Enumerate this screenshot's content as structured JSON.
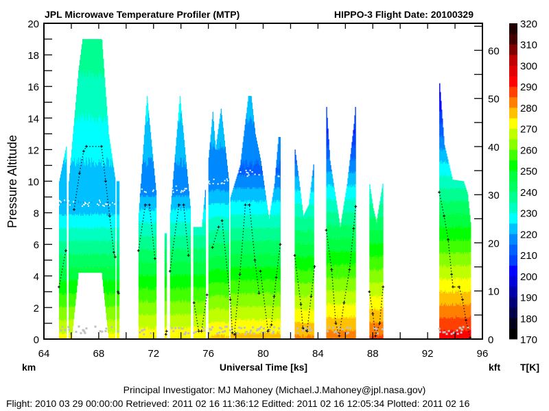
{
  "chart_data": {
    "type": "heatmap",
    "title_left": "JPL Microwave Temperature Profiler (MTP)",
    "title_right": "HIPPO-3  Flight Date: 20100329",
    "xlabel": "Universal Time [ks]",
    "ylabel": "Pressure Altitude",
    "left_unit": "km",
    "right_unit": "kft",
    "colorbar_unit": "T[K]",
    "xlim": [
      64,
      96
    ],
    "ylim": [
      0,
      20
    ],
    "right_ylim_kft": [
      0,
      65.6168
    ],
    "x_ticks": [
      "64",
      "68",
      "72",
      "76",
      "80",
      "84",
      "88",
      "92",
      "96"
    ],
    "y_ticks": [
      "0",
      "2",
      "4",
      "6",
      "8",
      "10",
      "12",
      "14",
      "16",
      "18",
      "20"
    ],
    "right_ticks": [
      "0",
      "10",
      "20",
      "30",
      "40",
      "50",
      "60"
    ],
    "colorbar": {
      "range": [
        170,
        320
      ],
      "step": 5,
      "ticks": [
        "170",
        "180",
        "190",
        "200",
        "210",
        "220",
        "230",
        "240",
        "250",
        "260",
        "270",
        "280",
        "290",
        "300",
        "310",
        "320"
      ],
      "colors": [
        "#000000",
        "#00001c",
        "#000048",
        "#000078",
        "#0000a8",
        "#0000d8",
        "#0000ff",
        "#0040ff",
        "#0060ff",
        "#0088ff",
        "#00c0ff",
        "#00ffff",
        "#00ffc0",
        "#00ff90",
        "#00ff60",
        "#00ff40",
        "#00ff00",
        "#40ff00",
        "#88ff00",
        "#c0ff00",
        "#ffff00",
        "#ffc000",
        "#ff8000",
        "#ff4000",
        "#ff0000",
        "#e00000",
        "#c00000",
        "#800000",
        "#400000",
        "#200000"
      ]
    },
    "profiles": [
      {
        "tops": [
          [
            65.1,
            10.0
          ],
          [
            65.65,
            12.4
          ]
        ],
        "surface_T": 272,
        "tropopause_km": 8.6,
        "lapse": 6.0
      },
      {
        "tops": [
          [
            65.8,
            10.0
          ],
          [
            66.5,
            17.0
          ],
          [
            66.8,
            19.0
          ],
          [
            68.2,
            19.0
          ],
          [
            68.7,
            13.0
          ],
          [
            69.2,
            10.0
          ]
        ],
        "surface_T": 272,
        "tropopause_km": 8.6,
        "lapse": 6.0,
        "gap": [
          [
            66.0,
            0
          ],
          [
            66.5,
            4.2
          ],
          [
            68.2,
            4.2
          ],
          [
            68.7,
            0
          ]
        ]
      },
      {
        "tops": [
          [
            69.3,
            10.0
          ],
          [
            69.5,
            10.0
          ]
        ],
        "surface_T": 272,
        "tropopause_km": 8.6,
        "lapse": 6.0
      },
      {
        "tops": [
          [
            70.9,
            8.0
          ],
          [
            71.5,
            15.4
          ],
          [
            72.2,
            9.0
          ]
        ],
        "surface_T": 274,
        "tropopause_km": 9.5,
        "lapse": 6.0
      },
      {
        "tops": [
          [
            72.8,
            6.7
          ],
          [
            72.95,
            6.7
          ]
        ],
        "surface_T": 274,
        "tropopause_km": 9.5,
        "lapse": 6.0
      },
      {
        "tops": [
          [
            73.2,
            8.0
          ],
          [
            73.9,
            15.4
          ],
          [
            74.7,
            8.0
          ]
        ],
        "surface_T": 274,
        "tropopause_km": 9.5,
        "lapse": 6.0
      },
      {
        "tops": [
          [
            74.9,
            7.1
          ],
          [
            75.5,
            7.1
          ],
          [
            75.8,
            9.9
          ]
        ],
        "surface_T": 274,
        "tropopause_km": 10.0,
        "lapse": 6.0
      },
      {
        "tops": [
          [
            76.0,
            11.5
          ],
          [
            76.3,
            14.4
          ],
          [
            76.5,
            12.0
          ],
          [
            76.9,
            14.6
          ],
          [
            77.5,
            9.8
          ]
        ],
        "surface_T": 276,
        "tropopause_km": 10.0,
        "lapse": 6.0
      },
      {
        "tops": [
          [
            77.6,
            9.0
          ],
          [
            78.3,
            11.0
          ],
          [
            78.9,
            15.4
          ],
          [
            79.1,
            15.4
          ],
          [
            79.4,
            13.0
          ],
          [
            79.8,
            11.3
          ],
          [
            80.4,
            7.6
          ],
          [
            80.8,
            9.8
          ],
          [
            81.1,
            12.8
          ],
          [
            81.25,
            12.8
          ]
        ],
        "surface_T": 277,
        "tropopause_km": 10.5,
        "lapse": 6.0
      },
      {
        "tops": [
          [
            82.3,
            12.0
          ],
          [
            82.6,
            10.0
          ],
          [
            82.9,
            7.8
          ],
          [
            83.3,
            8.5
          ],
          [
            83.7,
            11.4
          ]
        ],
        "surface_T": 281,
        "tropopause_km": 12.0,
        "lapse": 6.0
      },
      {
        "tops": [
          [
            84.6,
            14.7
          ],
          [
            84.85,
            11.3
          ],
          [
            85.6,
            7.1
          ],
          [
            86.1,
            9.8
          ],
          [
            86.6,
            13.6
          ],
          [
            86.75,
            15.2
          ]
        ],
        "surface_T": 283,
        "tropopause_km": 13.0,
        "lapse": 6.0
      },
      {
        "tops": [
          [
            87.75,
            9.8
          ],
          [
            88.0,
            8.3
          ],
          [
            88.25,
            7.4
          ],
          [
            88.75,
            10.1
          ]
        ],
        "surface_T": 286,
        "tropopause_km": 14.0,
        "lapse": 6.0
      },
      {
        "tops": [
          [
            92.85,
            16.2
          ],
          [
            93.2,
            12.3
          ],
          [
            93.8,
            10.1
          ],
          [
            94.6,
            10.0
          ],
          [
            94.9,
            9.2
          ],
          [
            95.15,
            7.0
          ]
        ],
        "surface_T": 293,
        "tropopause_km": 16.0,
        "lapse": 6.1
      }
    ],
    "flight_altitude_km": [
      [
        [
          65.1,
          3.3
        ],
        [
          65.6,
          5.6
        ]
      ],
      [
        [
          66.2,
          8.2
        ],
        [
          66.6,
          10.5
        ],
        [
          66.9,
          11.9
        ],
        [
          67.1,
          12.2
        ],
        [
          68.2,
          12.2
        ],
        [
          68.5,
          10.0
        ],
        [
          68.8,
          7.8
        ],
        [
          69.1,
          5.5
        ],
        [
          69.2,
          5.2
        ]
      ],
      [
        [
          69.4,
          3.0
        ],
        [
          69.45,
          2.9
        ]
      ],
      [
        [
          70.9,
          5.6
        ],
        [
          71.4,
          8.5
        ],
        [
          71.7,
          8.5
        ],
        [
          72.1,
          5.1
        ]
      ],
      [
        [
          72.9,
          0.3
        ],
        [
          72.95,
          0.5
        ]
      ],
      [
        [
          73.2,
          4.3
        ],
        [
          73.85,
          8.5
        ],
        [
          74.2,
          8.5
        ],
        [
          74.55,
          5.3
        ]
      ],
      [
        [
          74.95,
          2.3
        ],
        [
          75.3,
          0.5
        ],
        [
          75.5,
          0.5
        ],
        [
          75.9,
          2.8
        ]
      ],
      [
        [
          76.3,
          5.8
        ],
        [
          76.75,
          7.1
        ]
      ],
      [
        [
          77.0,
          7.5
        ],
        [
          77.6,
          2.5
        ],
        [
          77.75,
          0.4
        ],
        [
          77.9,
          0.3
        ],
        [
          78.3,
          4.1
        ],
        [
          78.7,
          8.5
        ],
        [
          79.0,
          8.5
        ],
        [
          79.4,
          5.0
        ],
        [
          79.7,
          2.9
        ]
      ],
      [
        [
          79.8,
          4.3
        ],
        [
          80.35,
          0.5
        ],
        [
          80.6,
          0.9
        ],
        [
          80.8,
          2.7
        ],
        [
          80.95,
          3.9
        ],
        [
          81.25,
          6.0
        ]
      ],
      [
        [
          82.3,
          5.3
        ],
        [
          82.75,
          2.2
        ],
        [
          82.9,
          0.7
        ],
        [
          83.2,
          0.5
        ],
        [
          83.5,
          2.7
        ],
        [
          83.75,
          4.6
        ]
      ],
      [
        [
          84.6,
          6.9
        ],
        [
          85.0,
          4.4
        ],
        [
          85.3,
          1.0
        ],
        [
          85.55,
          0.2
        ],
        [
          85.9,
          2.3
        ],
        [
          86.3,
          4.4
        ],
        [
          86.6,
          7.0
        ],
        [
          86.75,
          8.4
        ]
      ],
      [
        [
          87.75,
          3.0
        ],
        [
          88.0,
          1.6
        ],
        [
          88.2,
          0.2
        ],
        [
          88.5,
          1.0
        ],
        [
          88.75,
          3.3
        ]
      ],
      [
        [
          92.85,
          9.3
        ],
        [
          93.2,
          7.8
        ],
        [
          93.5,
          6.3
        ],
        [
          93.75,
          4.1
        ],
        [
          93.85,
          3.3
        ],
        [
          94.3,
          3.3
        ],
        [
          94.55,
          2.5
        ],
        [
          94.8,
          1.2
        ],
        [
          95.1,
          0.1
        ]
      ]
    ]
  },
  "footer": {
    "pi_line": "Principal Investigator: MJ Mahoney (Michael.J.Mahoney@jpl.nasa.gov)",
    "dates_line": "Flight: 2010 03 29 00:00:00   Retrieved: 2011 02 16 11:36:12   Editted: 2011 02 16 12:05:34  Plotted: 2011 02 16"
  }
}
